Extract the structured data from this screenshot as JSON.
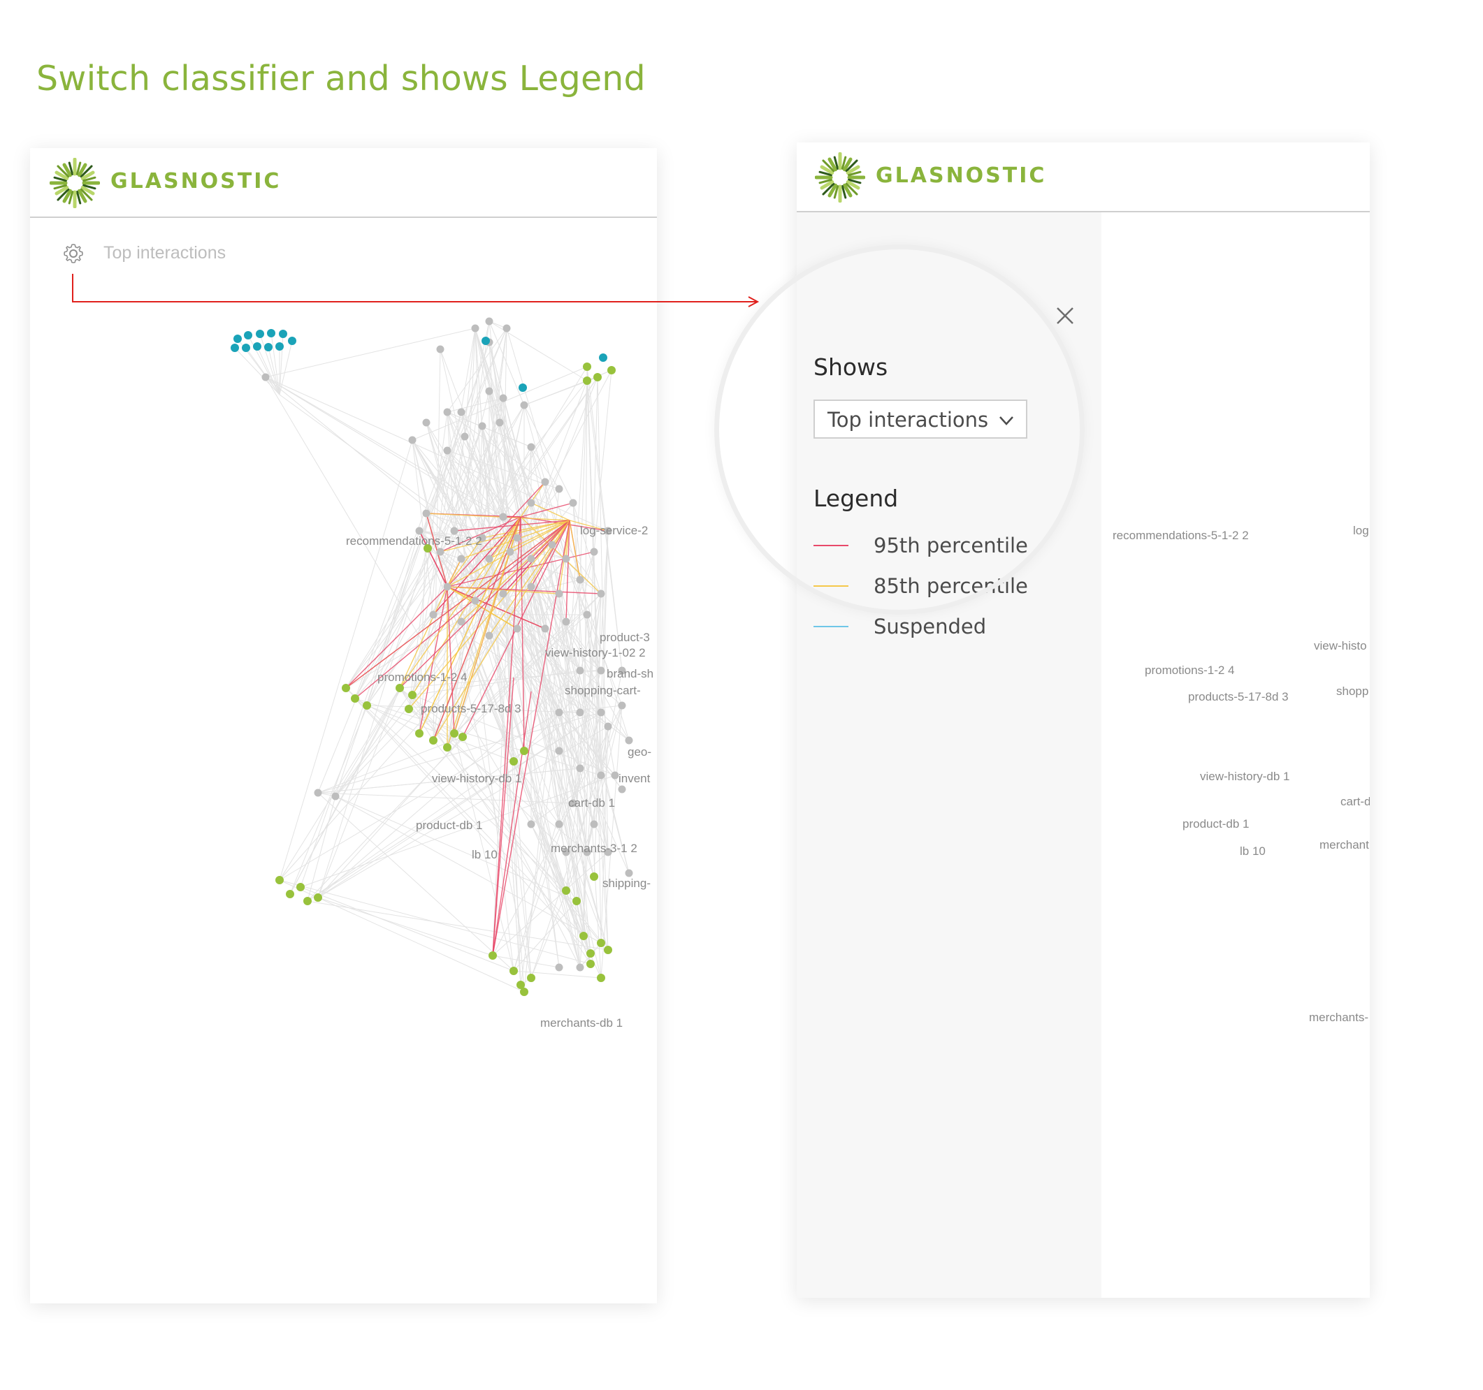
{
  "page": {
    "title": "Switch classifier and shows Legend"
  },
  "app": {
    "brand": "GLASNOSTIC",
    "logo_icon": "glasnostic-sunburst-logo",
    "brand_color": "#8ab43c"
  },
  "left_panel": {
    "toolbar": {
      "icon": "gear-icon",
      "label": "Top interactions"
    }
  },
  "right_panel": {
    "settings": {
      "shows_title": "Shows",
      "shows_select_value": "Top interactions",
      "legend_title": "Legend",
      "legend": [
        {
          "label": "95th percentile",
          "color": "#e8496a"
        },
        {
          "label": "85th percentile",
          "color": "#f5c84a"
        },
        {
          "label": "Suspended",
          "color": "#6fc7e8"
        }
      ]
    }
  },
  "colors": {
    "node_gray": "#bdbdbd",
    "node_green": "#98c23c",
    "node_teal": "#1aa3b8",
    "edge_gray": "#e3e3e3",
    "flow_arrow": "#e0201c"
  },
  "graph_labels_left": [
    "recommendations-5-1-2 2",
    "log-service-2",
    "product-3",
    "view-history-1-02 2",
    "promotions-1-2 4",
    "brand-sh",
    "shopping-cart-",
    "products-5-17-8d 3",
    "geo-",
    "view-history-db 1",
    "invent",
    "cart-db 1",
    "product-db 1",
    "lb 10",
    "merchants-3-1 2",
    "shipping-",
    "merchants-db 1"
  ],
  "graph_labels_right": [
    "recommendations-5-1-2 2",
    "log",
    "view-histo",
    "promotions-1-2 4",
    "shopp",
    "products-5-17-8d 3",
    "view-history-db 1",
    "cart-dl",
    "product-db 1",
    "lb 10",
    "merchant",
    "merchants-"
  ]
}
